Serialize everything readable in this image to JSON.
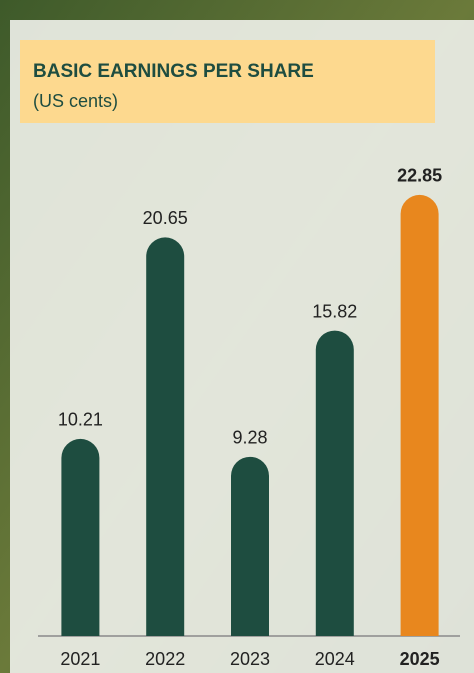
{
  "chart_data": {
    "type": "bar",
    "title": "BASIC EARNINGS PER SHARE",
    "subtitle": "(US cents)",
    "categories": [
      "2021",
      "2022",
      "2023",
      "2024",
      "2025"
    ],
    "values": [
      10.21,
      20.65,
      9.28,
      15.82,
      22.85
    ],
    "color": "#1e4d40",
    "highlight_index": 4,
    "highlight_color": "#e8871e",
    "ylim": [
      0,
      23
    ]
  }
}
